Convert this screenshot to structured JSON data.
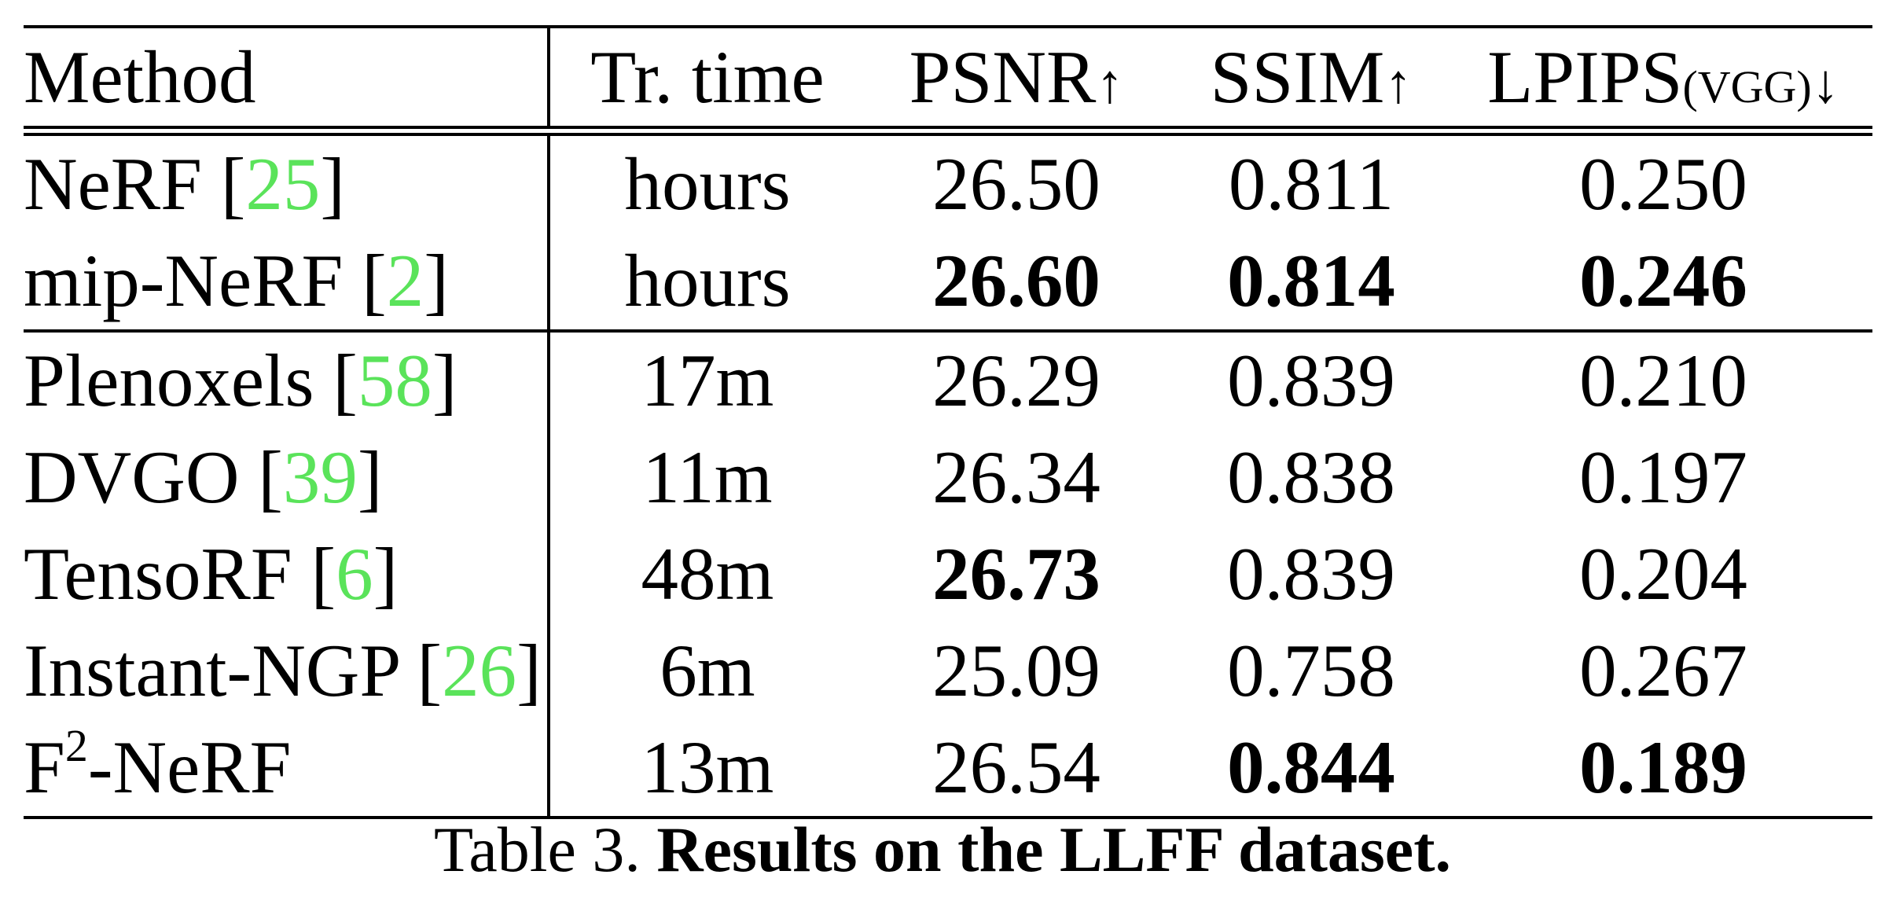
{
  "table": {
    "headers": {
      "method": "Method",
      "time": "Tr. time",
      "psnr": "PSNR",
      "psnr_arrow": "↑",
      "ssim": "SSIM",
      "ssim_arrow": "↑",
      "lpips": "LPIPS",
      "lpips_sub": "(VGG)",
      "lpips_arrow": "↓"
    },
    "rows": [
      {
        "method": "NeRF",
        "cite": "25",
        "time": "hours",
        "psnr": "26.50",
        "ssim": "0.811",
        "lpips": "0.250"
      },
      {
        "method": "mip-NeRF",
        "cite": "2",
        "time": "hours",
        "psnr": "26.60",
        "ssim": "0.814",
        "lpips": "0.246"
      },
      {
        "method": "Plenoxels",
        "cite": "58",
        "time": "17m",
        "psnr": "26.29",
        "ssim": "0.839",
        "lpips": "0.210"
      },
      {
        "method": "DVGO",
        "cite": "39",
        "time": "11m",
        "psnr": "26.34",
        "ssim": "0.838",
        "lpips": "0.197"
      },
      {
        "method": "TensoRF",
        "cite": "6",
        "time": "48m",
        "psnr": "26.73",
        "ssim": "0.839",
        "lpips": "0.204"
      },
      {
        "method": "Instant-NGP",
        "cite": "26",
        "time": "6m",
        "psnr": "25.09",
        "ssim": "0.758",
        "lpips": "0.267"
      },
      {
        "method_base": "F",
        "method_sup": "2",
        "method_rest": "-NeRF",
        "time": "13m",
        "psnr": "26.54",
        "ssim": "0.844",
        "lpips": "0.189"
      }
    ],
    "bold_cells": [
      "mip-NeRF.psnr",
      "mip-NeRF.ssim",
      "mip-NeRF.lpips",
      "TensoRF.psnr",
      "F2-NeRF.ssim",
      "F2-NeRF.lpips"
    ],
    "cite_color": "#5ae35a"
  },
  "caption": {
    "label": "Table 3.",
    "title": "Results on the LLFF dataset."
  }
}
